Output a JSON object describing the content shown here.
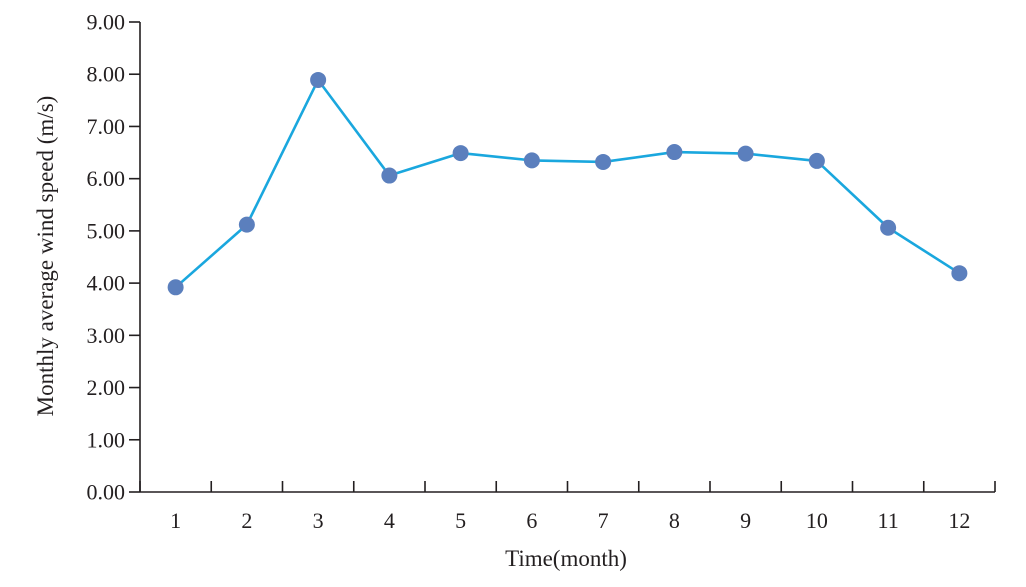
{
  "chart_data": {
    "type": "line",
    "title": "",
    "xlabel": "Time(month)",
    "ylabel": "Monthly average wind speed (m/s)",
    "categories": [
      "1",
      "2",
      "3",
      "4",
      "5",
      "6",
      "7",
      "8",
      "9",
      "10",
      "11",
      "12"
    ],
    "series": [
      {
        "values": [
          3.92,
          5.12,
          7.89,
          6.06,
          6.49,
          6.35,
          6.32,
          6.51,
          6.48,
          6.34,
          5.06,
          4.19
        ]
      }
    ],
    "ylim": [
      0,
      9
    ],
    "yticks": [
      "0.00",
      "1.00",
      "2.00",
      "3.00",
      "4.00",
      "5.00",
      "6.00",
      "7.00",
      "8.00",
      "9.00"
    ],
    "grid": false,
    "legend": "none",
    "colors": {
      "line": "#1aa7de",
      "marker": "#5b7fbd",
      "axis": "#231f20"
    }
  }
}
